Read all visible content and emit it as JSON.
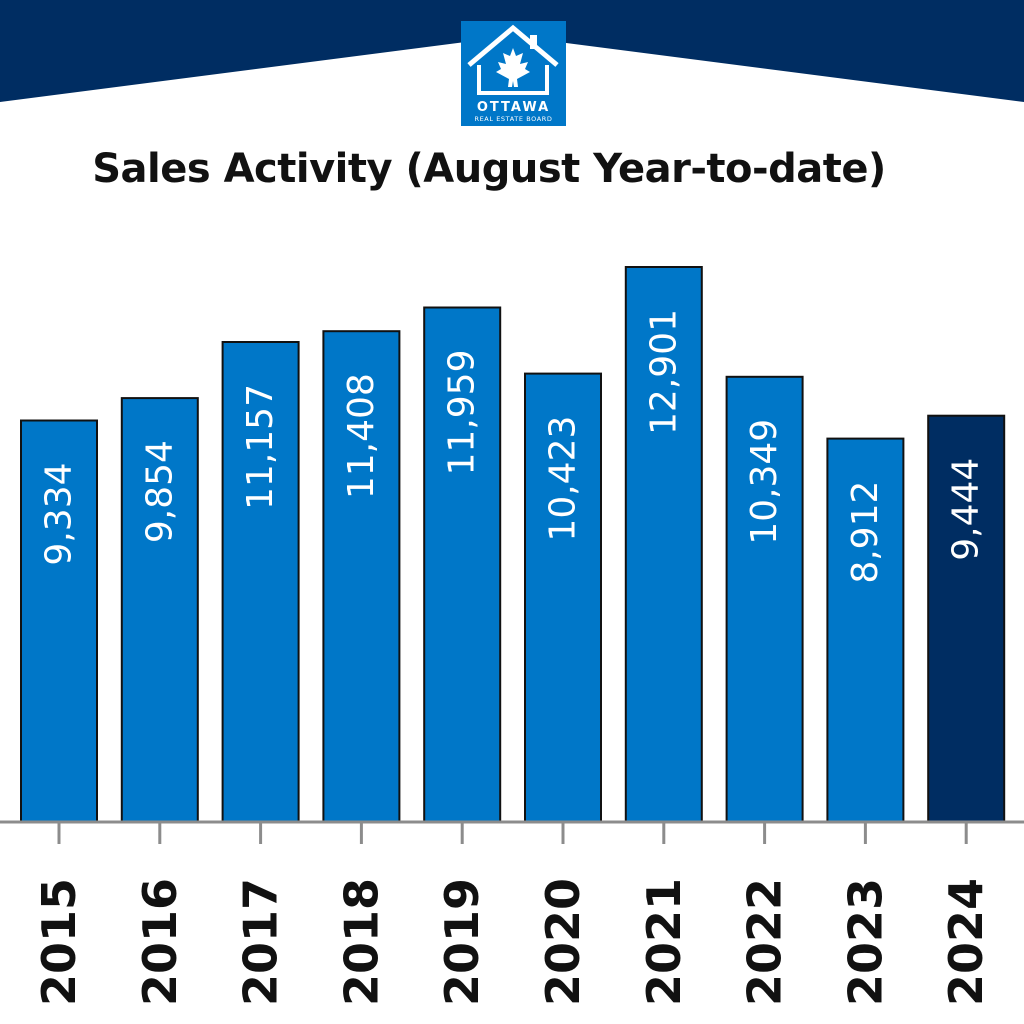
{
  "logo": {
    "line1": "OTTAWA",
    "line2": "REAL ESTATE BOARD"
  },
  "colors": {
    "banner": "#002d62",
    "bar": "#0077c8",
    "bar_highlight": "#002d62",
    "logo_bg": "#0077c8"
  },
  "chart_data": {
    "type": "bar",
    "title": "Sales Activity (August Year-to-date)",
    "categories": [
      "2015",
      "2016",
      "2017",
      "2018",
      "2019",
      "2020",
      "2021",
      "2022",
      "2023",
      "2024"
    ],
    "values": [
      9334,
      9854,
      11157,
      11408,
      11959,
      10423,
      12901,
      10349,
      8912,
      9444
    ],
    "data_labels": [
      "9,334",
      "9,854",
      "11,157",
      "11,408",
      "11,959",
      "10,423",
      "12,901",
      "10,349",
      "8,912",
      "9,444"
    ],
    "highlight_category": "2024",
    "grid": false,
    "legend": "none"
  }
}
